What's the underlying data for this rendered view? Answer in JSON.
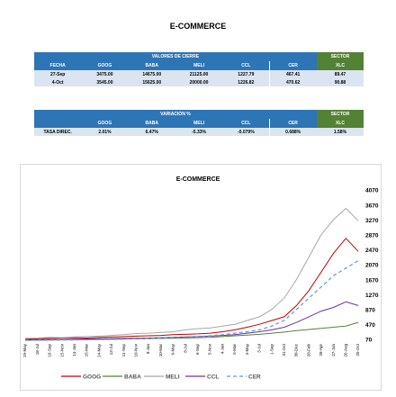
{
  "header": {
    "title": "E-COMMERCE"
  },
  "table1": {
    "group": "VALORES DE CIERRE",
    "sector": "SECTOR",
    "sector_column": "XLC",
    "columns": [
      "FECHA",
      "GOOG",
      "BABA",
      "MELI",
      "CCL",
      "CER"
    ],
    "rows": [
      [
        "27-Sep",
        "3475.00",
        "14675.00",
        "21125.00",
        "1227.79",
        "467.41",
        "89.47"
      ],
      [
        "4-Oct",
        "3545.00",
        "15625.00",
        "20000.00",
        "1226.82",
        "470.62",
        "90.88"
      ]
    ]
  },
  "table2": {
    "group": "VARIACION %",
    "sector": "SECTOR",
    "sector_column": "XLC",
    "columns": [
      "GOOG",
      "BABA",
      "MELI",
      "CCL",
      "CER"
    ],
    "row_label": "TASA DIREC.",
    "row": [
      "2.01%",
      "6.47%",
      "-5.33%",
      "-0.079%",
      "0.688%",
      "1.58%"
    ]
  },
  "chart_data": {
    "type": "line",
    "title": "E-COMMERCE",
    "categories": [
      "19-May",
      "18-Jul",
      "16-Sep",
      "15-Nov",
      "14-Jan",
      "15-Mar",
      "14-May",
      "13-Jul",
      "11-Sep",
      "10-Nov",
      "9-Jan",
      "10-Mar",
      "9-May",
      "8-Jul",
      "6-Sep",
      "5-Nov",
      "4-Jan",
      "5-Mar",
      "4-May",
      "3-Jul",
      "1-Sep",
      "31-Oct",
      "30-Dec",
      "28-Feb",
      "28-Apr",
      "27-Jun",
      "26-Aug",
      "25-Oct"
    ],
    "series": [
      {
        "name": "GOOG",
        "color": "#c00000",
        "dashed": false,
        "values": [
          100,
          110,
          120,
          130,
          140,
          130,
          150,
          160,
          170,
          180,
          190,
          200,
          220,
          230,
          240,
          260,
          300,
          350,
          420,
          500,
          600,
          700,
          1000,
          1400,
          1900,
          2400,
          2800,
          2450
        ]
      },
      {
        "name": "BABA",
        "color": "#548235",
        "dashed": false,
        "values": [
          70,
          75,
          80,
          85,
          90,
          90,
          95,
          100,
          105,
          110,
          115,
          120,
          125,
          130,
          140,
          150,
          170,
          190,
          210,
          230,
          260,
          290,
          330,
          360,
          390,
          420,
          450,
          550
        ]
      },
      {
        "name": "MELI",
        "color": "#a6a6a6",
        "dashed": false,
        "values": [
          120,
          130,
          150,
          140,
          160,
          170,
          180,
          200,
          220,
          250,
          260,
          280,
          300,
          350,
          380,
          400,
          450,
          500,
          600,
          700,
          900,
          1200,
          1700,
          2300,
          2900,
          3300,
          3600,
          3270
        ]
      },
      {
        "name": "CCL",
        "color": "#7030a0",
        "dashed": false,
        "values": [
          80,
          85,
          90,
          95,
          100,
          105,
          110,
          115,
          120,
          125,
          130,
          140,
          150,
          160,
          170,
          180,
          200,
          220,
          260,
          300,
          350,
          420,
          550,
          700,
          850,
          950,
          1100,
          1000
        ]
      },
      {
        "name": "CER",
        "color": "#5b9bd5",
        "dashed": true,
        "values": [
          70,
          72,
          75,
          78,
          80,
          85,
          90,
          95,
          100,
          110,
          120,
          130,
          140,
          150,
          170,
          190,
          220,
          260,
          300,
          350,
          450,
          600,
          900,
          1200,
          1500,
          1800,
          2000,
          2200
        ]
      }
    ],
    "ylim": [
      70,
      4070
    ],
    "yticks": [
      70,
      470,
      870,
      1270,
      1670,
      2070,
      2470,
      2870,
      3270,
      3670,
      4070
    ],
    "grid": false
  }
}
